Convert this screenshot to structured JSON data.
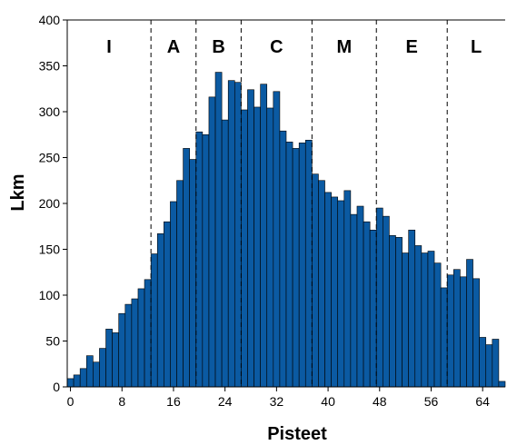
{
  "chart_data": {
    "type": "bar",
    "title": "",
    "xlabel": "Pisteet",
    "ylabel": "Lkm",
    "x": [
      0,
      1,
      2,
      3,
      4,
      5,
      6,
      7,
      8,
      9,
      10,
      11,
      12,
      13,
      14,
      15,
      16,
      17,
      18,
      19,
      20,
      21,
      22,
      23,
      24,
      25,
      26,
      27,
      28,
      29,
      30,
      31,
      32,
      33,
      34,
      35,
      36,
      37,
      38,
      39,
      40,
      41,
      42,
      43,
      44,
      45,
      46,
      47,
      48,
      49,
      50,
      51,
      52,
      53,
      54,
      55,
      56,
      57,
      58,
      59,
      60,
      61,
      62,
      63,
      64,
      65,
      66,
      67
    ],
    "values": [
      9,
      13,
      20,
      34,
      27,
      42,
      63,
      59,
      80,
      90,
      96,
      107,
      117,
      145,
      167,
      180,
      202,
      225,
      260,
      248,
      278,
      275,
      316,
      343,
      291,
      334,
      332,
      302,
      324,
      305,
      330,
      304,
      322,
      279,
      267,
      260,
      266,
      269,
      232,
      225,
      212,
      207,
      203,
      214,
      188,
      197,
      180,
      171,
      195,
      186,
      165,
      163,
      146,
      171,
      154,
      146,
      148,
      135,
      108,
      122,
      128,
      120,
      139,
      118,
      54,
      46,
      52,
      6
    ],
    "xlim": [
      -0.5,
      67.5
    ],
    "ylim": [
      0,
      400
    ],
    "x_ticks": [
      0,
      8,
      16,
      24,
      32,
      40,
      48,
      56,
      64
    ],
    "y_ticks": [
      0,
      50,
      100,
      150,
      200,
      250,
      300,
      350,
      400
    ],
    "bar_color": "#0b5aa2",
    "grade_boundaries": [
      12.5,
      19.5,
      26.5,
      37.5,
      47.5,
      58.5
    ],
    "grades": [
      {
        "label": "I",
        "from": -0.5,
        "to": 12.5
      },
      {
        "label": "A",
        "from": 12.5,
        "to": 19.5
      },
      {
        "label": "B",
        "from": 19.5,
        "to": 26.5
      },
      {
        "label": "C",
        "from": 26.5,
        "to": 37.5
      },
      {
        "label": "M",
        "from": 37.5,
        "to": 47.5
      },
      {
        "label": "E",
        "from": 47.5,
        "to": 58.5
      },
      {
        "label": "L",
        "from": 58.5,
        "to": 67.5
      }
    ],
    "grid": false,
    "legend": "none"
  }
}
